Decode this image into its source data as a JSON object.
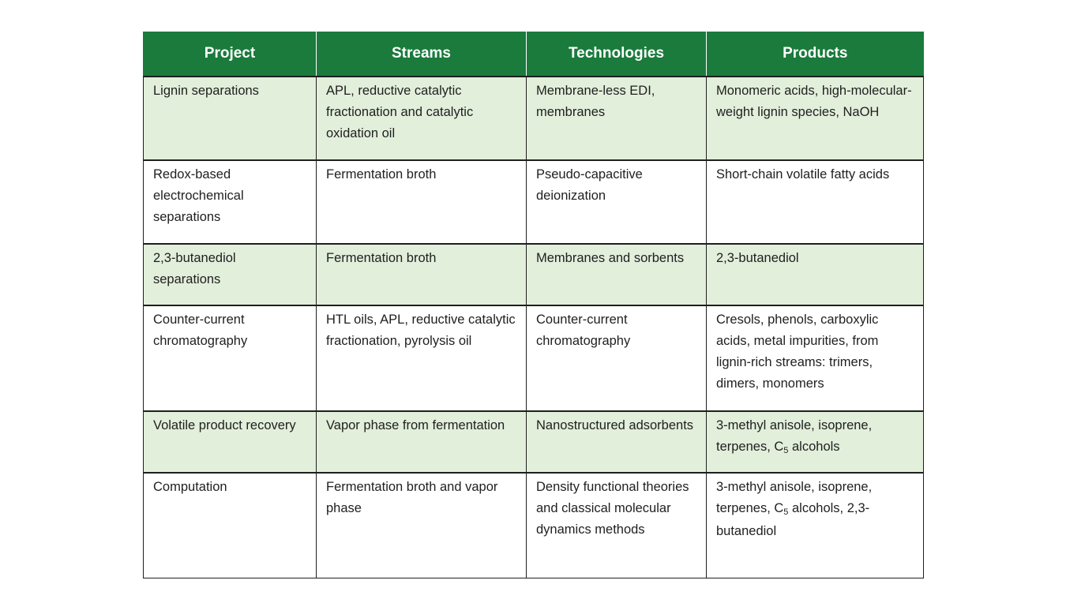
{
  "table": {
    "headers": [
      "Project",
      "Streams",
      "Technologies",
      "Products"
    ],
    "rows": [
      {
        "project": "Lignin separations",
        "streams": "APL, reductive catalytic fractionation and catalytic oxidation oil",
        "technologies": "Membrane-less EDI, membranes",
        "products": "Monomeric acids, high-molecular-weight lignin species, NaOH"
      },
      {
        "project": "Redox-based electrochemical separations",
        "streams": "Fermentation broth",
        "technologies": "Pseudo-capacitive deionization",
        "products": "Short-chain volatile fatty acids"
      },
      {
        "project": "2,3-butanediol separations",
        "streams": "Fermentation broth",
        "technologies": "Membranes and sorbents",
        "products": "2,3-butanediol"
      },
      {
        "project": "Counter-current chromatography",
        "streams": "HTL oils, APL, reductive catalytic fractionation, pyrolysis oil",
        "technologies": "Counter-current chromatography",
        "products": "Cresols, phenols, carboxylic acids, metal impurities, from lignin-rich streams: trimers, dimers, monomers"
      },
      {
        "project": "Volatile product recovery",
        "streams": "Vapor phase from fermentation",
        "technologies": "Nanostructured adsorbents",
        "products_prefix": "3-methyl anisole, isoprene, terpenes, C",
        "products_sub": "5",
        "products_suffix": " alcohols"
      },
      {
        "project": "Computation",
        "streams": "Fermentation broth and vapor phase",
        "technologies": "Density functional theories and classical molecular dynamics methods",
        "products_prefix": "3-methyl anisole, isoprene, terpenes, C",
        "products_sub": "5",
        "products_suffix": " alcohols, 2,3-butanediol"
      }
    ]
  },
  "colors": {
    "header_background": "#1a7b3c",
    "header_text": "#ffffff",
    "shaded_row": "#e2efdb",
    "border": "#1f1f1f"
  }
}
